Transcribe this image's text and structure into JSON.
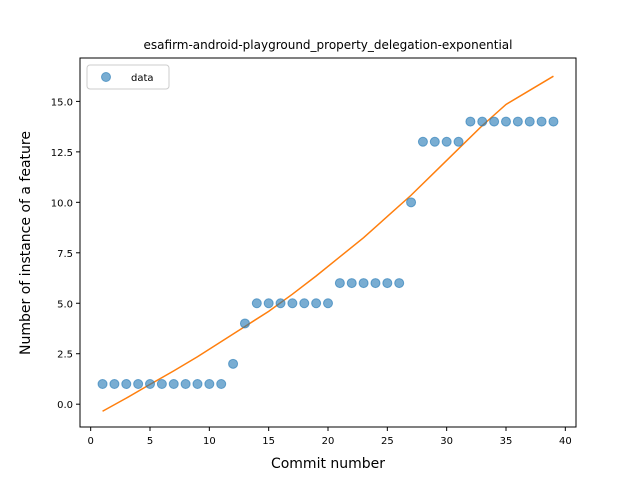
{
  "chart_data": {
    "type": "scatter",
    "title": "esafirm-android-playground_property_delegation-exponential",
    "xlabel": "Commit number",
    "ylabel": "Number of instance of a feature",
    "xlim": [
      -0.9,
      40.9
    ],
    "ylim": [
      -1.13,
      17.15
    ],
    "xticks": [
      0,
      5,
      10,
      15,
      20,
      25,
      30,
      35,
      40
    ],
    "xtick_labels": [
      "0",
      "5",
      "10",
      "15",
      "20",
      "25",
      "30",
      "35",
      "40"
    ],
    "yticks": [
      0.0,
      2.5,
      5.0,
      7.5,
      10.0,
      12.5,
      15.0
    ],
    "ytick_labels": [
      "0.0",
      "2.5",
      "5.0",
      "7.5",
      "10.0",
      "12.5",
      "15.0"
    ],
    "grid": false,
    "legend": {
      "position": "upper-left",
      "entries": [
        "data"
      ]
    },
    "series": [
      {
        "name": "data",
        "kind": "scatter",
        "color": "#1f77b4",
        "x": [
          1,
          2,
          3,
          4,
          5,
          6,
          7,
          8,
          9,
          10,
          11,
          12,
          13,
          14,
          15,
          16,
          17,
          18,
          19,
          20,
          21,
          22,
          23,
          24,
          25,
          26,
          27,
          28,
          29,
          30,
          31,
          32,
          33,
          34,
          35,
          36,
          37,
          38,
          39
        ],
        "y": [
          1,
          1,
          1,
          1,
          1,
          1,
          1,
          1,
          1,
          1,
          1,
          2,
          4,
          5,
          5,
          5,
          5,
          5,
          5,
          5,
          6,
          6,
          6,
          6,
          6,
          6,
          10,
          13,
          13,
          13,
          13,
          14,
          14,
          14,
          14,
          14,
          14,
          14,
          14
        ]
      },
      {
        "kind": "line",
        "color": "#ff7f0e",
        "x": [
          1,
          3,
          5,
          7,
          9,
          11,
          13,
          15,
          17,
          19,
          21,
          23,
          25,
          27,
          29,
          31,
          33,
          35,
          37,
          39
        ],
        "y": [
          -0.35,
          0.3,
          0.98,
          1.65,
          2.35,
          3.1,
          3.85,
          4.6,
          5.45,
          6.35,
          7.3,
          8.25,
          9.3,
          10.35,
          11.5,
          12.65,
          13.8,
          14.85,
          15.55,
          16.25
        ]
      }
    ]
  }
}
